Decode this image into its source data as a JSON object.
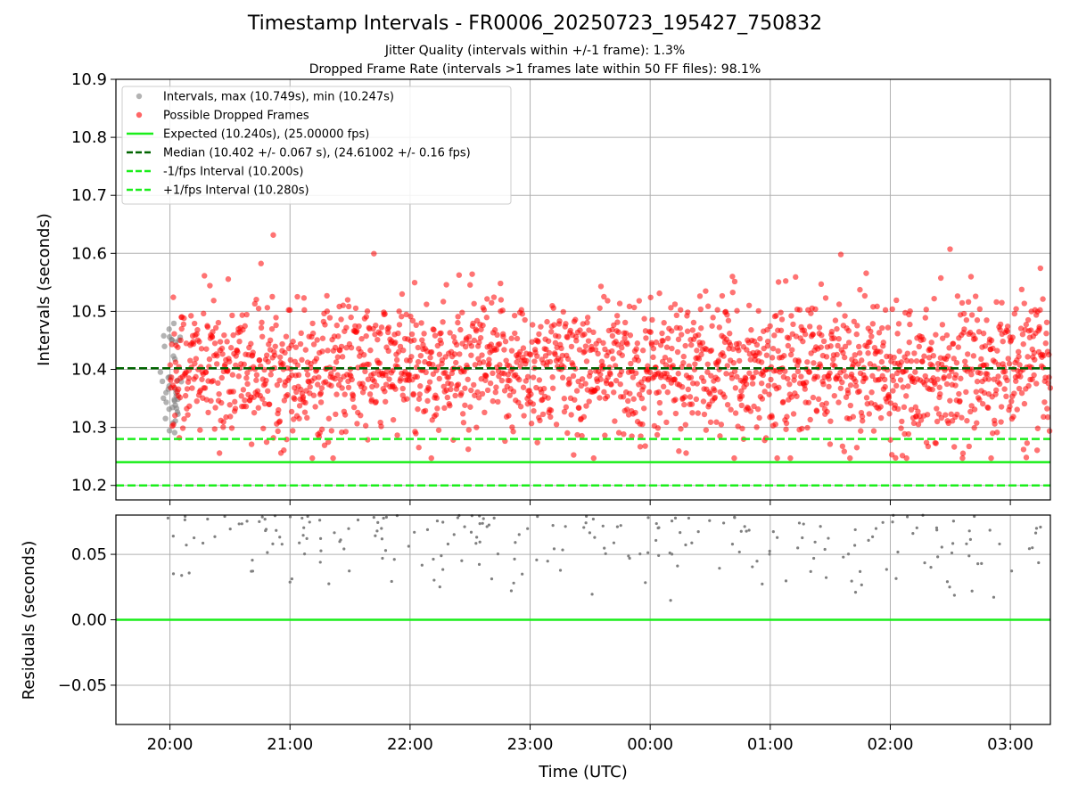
{
  "title": "Timestamp Intervals - FR0006_20250723_195427_750832",
  "subtitle_1": "Jitter Quality (intervals within +/-1 frame): 1.3%",
  "subtitle_2": "Dropped Frame Rate (intervals >1 frames late within 50 FF files): 98.1%",
  "chart_data": [
    {
      "type": "scatter",
      "ylabel": "Intervals (seconds)",
      "ylim": [
        10.175,
        10.9
      ],
      "xlim": [
        "19:33",
        "03:20"
      ],
      "x_ticks": [
        "20:00",
        "21:00",
        "22:00",
        "23:00",
        "00:00",
        "01:00",
        "02:00",
        "03:00"
      ],
      "y_ticks": [
        "10.2",
        "10.3",
        "10.4",
        "10.5",
        "10.6",
        "10.7",
        "10.8",
        "10.9"
      ],
      "grid": true,
      "legend_position": "upper-left",
      "point_count_approx": 2000,
      "series": [
        {
          "name": "Intervals, max (10.749s), min (10.247s)",
          "kind": "points",
          "color": "#808080",
          "time_range": [
            "19:55",
            "20:06"
          ],
          "value_range": [
            10.26,
            10.48
          ]
        },
        {
          "name": "Possible Dropped Frames",
          "kind": "points",
          "color": "#ff0000",
          "time_range": [
            "20:00",
            "03:20"
          ],
          "value_range": [
            10.247,
            10.749
          ],
          "center": 10.402,
          "spread": 0.067
        }
      ],
      "reference_lines": [
        {
          "name": "Expected (10.240s), (25.00000 fps)",
          "value": 10.24,
          "color": "#1aee1a",
          "style": "solid"
        },
        {
          "name": "Median (10.402 +/- 0.067 s), (24.61002 +/- 0.16 fps)",
          "value": 10.402,
          "color": "#006400",
          "style": "dashed"
        },
        {
          "name": "-1/fps Interval (10.200s)",
          "value": 10.2,
          "color": "#1aee1a",
          "style": "dashed"
        },
        {
          "name": "+1/fps Interval (10.280s)",
          "value": 10.28,
          "color": "#1aee1a",
          "style": "dashed"
        }
      ]
    },
    {
      "type": "scatter",
      "xlabel": "Time (UTC)",
      "ylabel": "Residuals (seconds)",
      "ylim": [
        -0.08,
        0.08
      ],
      "y_ticks": [
        "−0.05",
        "0.00",
        "0.05"
      ],
      "y_tick_values": [
        -0.05,
        0.0,
        0.05
      ],
      "grid": true,
      "zero_line_color": "#1aee1a",
      "series": [
        {
          "name": "",
          "kind": "points",
          "color": "#808080",
          "value_range": [
            0.007,
            0.08
          ]
        }
      ]
    }
  ]
}
